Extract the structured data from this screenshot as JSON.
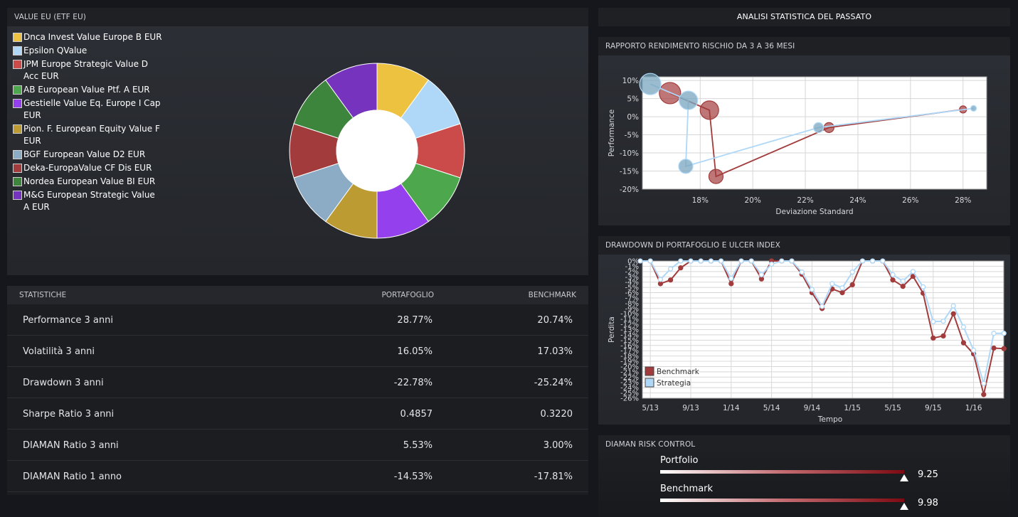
{
  "allocation": {
    "header": "VALUE EU (ETF EU)",
    "chart_data": {
      "type": "pie",
      "labels": [
        "Dnca Invest Value Europe B EUR",
        "Epsilon QValue",
        "JPM Europe Strategic Value D Acc EUR",
        "AB European Value Ptf. A EUR",
        "Gestielle Value Eq. Europe I Cap EUR",
        "Pion. F. European Equity Value F EUR",
        "BGF European Value D2 EUR",
        "Deka-EuropaValue CF Dis EUR",
        "Nordea European Value BI EUR",
        "M&G European Strategic Value A EUR"
      ],
      "values": [
        10,
        10,
        10,
        10,
        10,
        10,
        10,
        10,
        10,
        10
      ],
      "colors": [
        "#edc240",
        "#afd8f8",
        "#cb4b4b",
        "#4da74d",
        "#9440ed",
        "#bd9b33",
        "#8cacc6",
        "#a23c3c",
        "#3d853d",
        "#7633bd"
      ],
      "donut": true
    }
  },
  "stats": {
    "headers": {
      "label": "STATISTICHE",
      "portfolio": "PORTAFOGLIO",
      "benchmark": "BENCHMARK"
    },
    "rows": [
      {
        "label": "Performance 3 anni",
        "portfolio": "28.77%",
        "benchmark": "20.74%"
      },
      {
        "label": "Volatilità 3 anni",
        "portfolio": "16.05%",
        "benchmark": "17.03%"
      },
      {
        "label": "Drawdown 3 anni",
        "portfolio": "-22.78%",
        "benchmark": "-25.24%"
      },
      {
        "label": "Sharpe Ratio 3 anni",
        "portfolio": "0.4857",
        "benchmark": "0.3220"
      },
      {
        "label": "DIAMAN Ratio 3 anni",
        "portfolio": "5.53%",
        "benchmark": "3.00%"
      },
      {
        "label": "DIAMAN Ratio 1 anno",
        "portfolio": "-14.53%",
        "benchmark": "-17.81%"
      }
    ]
  },
  "analysis_title": "ANALISI STATISTICA DEL PASSATO",
  "scatter": {
    "header": "RAPPORTO RENDIMENTO RISCHIO DA 3 A 36 MESI",
    "chart_data": {
      "type": "scatter",
      "xlabel": "Deviazione Standard",
      "ylabel": "Performance",
      "xlim": [
        15.8,
        28.9
      ],
      "ylim": [
        -20,
        11
      ],
      "xticks": [
        "18%",
        "20%",
        "22%",
        "24%",
        "26%",
        "28%"
      ],
      "yticks": [
        "10%",
        "5%",
        "0%",
        "-5%",
        "-10%",
        "-15%",
        "-20%"
      ],
      "grid": true,
      "series": [
        {
          "color": "#a23c3c",
          "points": [
            [
              16.85,
              6.5,
              15
            ],
            [
              18.35,
              1.8,
              13
            ],
            [
              18.6,
              -16.5,
              10
            ],
            [
              22.9,
              -3.0,
              7
            ],
            [
              28.0,
              2.0,
              5
            ]
          ]
        },
        {
          "color": "#afd8f8",
          "points": [
            [
              16.1,
              9.0,
              15
            ],
            [
              17.55,
              4.5,
              13
            ],
            [
              17.45,
              -13.7,
              10
            ],
            [
              22.5,
              -3.0,
              7
            ],
            [
              28.4,
              2.3,
              4
            ]
          ]
        }
      ]
    }
  },
  "drawdown": {
    "header": "DRAWDOWN DI PORTAFOGLIO E ULCER INDEX",
    "chart_data": {
      "type": "line",
      "xlabel": "Tempo",
      "ylabel": "Perdita",
      "ylim": [
        -26,
        0
      ],
      "xticks": [
        "5/13",
        "9/13",
        "1/14",
        "5/14",
        "9/14",
        "1/15",
        "5/15",
        "9/15",
        "1/16"
      ],
      "xtick_index": [
        1,
        5,
        9,
        13,
        17,
        21,
        25,
        29,
        33
      ],
      "yticks": [
        "0%",
        "-1%",
        "-2%",
        "-3%",
        "-4%",
        "-5%",
        "-6%",
        "-7%",
        "-8%",
        "-9%",
        "-10%",
        "-11%",
        "-12%",
        "-13%",
        "-14%",
        "-15%",
        "-16%",
        "-17%",
        "-18%",
        "-19%",
        "-20%",
        "-21%",
        "-22%",
        "-23%",
        "-24%",
        "-25%",
        "-26%"
      ],
      "grid": true,
      "legend_position": "bottom-left",
      "series": [
        {
          "name": "Benchmark",
          "color": "#a23c3c",
          "values": [
            0,
            0,
            -4.3,
            -3.6,
            -1.3,
            0,
            0,
            0,
            0,
            -4.3,
            0,
            0,
            -3.4,
            0,
            0,
            0,
            -2.5,
            -6.0,
            -9.0,
            -5.3,
            -6.0,
            -4.5,
            0,
            0,
            0,
            -3.6,
            -4.8,
            -2.9,
            -6.1,
            -14.6,
            -14.2,
            -10.0,
            -15.5,
            -17.6,
            -25.3,
            -16.5,
            -16.6
          ]
        },
        {
          "name": "Strategia",
          "color": "#afd8f8",
          "values": [
            0,
            0,
            -3.5,
            -1.5,
            0,
            0,
            0,
            0,
            0,
            -3.3,
            0,
            0,
            -2.6,
            -0.6,
            0,
            0,
            -2.1,
            -5.4,
            -8.6,
            -4.3,
            -5.1,
            -2.1,
            0,
            0,
            0,
            -2.6,
            -3.8,
            -2.0,
            -4.9,
            -11.5,
            -11.4,
            -8.5,
            -12.5,
            -16.9,
            -23.2,
            -13.7,
            -13.7
          ]
        }
      ]
    }
  },
  "risk": {
    "header": "DIAMAN RISK CONTROL",
    "items": [
      {
        "label": "Portfolio",
        "value": "9.25"
      },
      {
        "label": "Benchmark",
        "value": "9.98"
      }
    ]
  }
}
